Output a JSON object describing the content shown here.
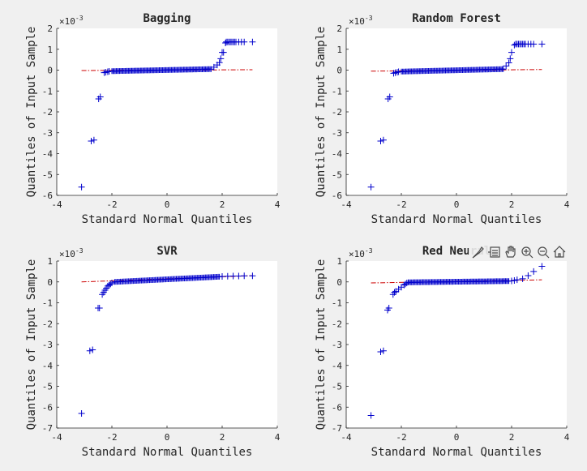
{
  "toolbar": {
    "icons": [
      "brush-icon",
      "data-cursor-icon",
      "pan-hand-icon",
      "zoom-in-icon",
      "zoom-out-icon",
      "home-icon"
    ]
  },
  "colors": {
    "background": "#f0f0f0",
    "axes_background": "#ffffff",
    "markers": "#0000cc",
    "reference_line": "#cc0000",
    "text": "#262626"
  },
  "chart_data": [
    {
      "type": "scatter",
      "title": "Bagging",
      "xlabel": "Standard Normal Quantiles",
      "ylabel": "Quantiles of Input Sample",
      "exponent_label": "×10",
      "exponent_power": "-3",
      "xlim": [
        -4,
        4
      ],
      "ylim": [
        -6,
        2
      ],
      "xticks": [
        "-4",
        "-2",
        "0",
        "2",
        "4"
      ],
      "yticks": [
        "2",
        "1",
        "0",
        "-1",
        "-2",
        "-3",
        "-4",
        "-5",
        "-6"
      ],
      "grid": false,
      "reference_line": {
        "x": [
          -3.1,
          3.1
        ],
        "y": [
          -0.02,
          0.02
        ],
        "style": "dash-dot",
        "color": "#cc0000"
      },
      "outlier_points": {
        "x": [
          -3.1,
          -2.75,
          -2.65,
          -2.48,
          -2.42,
          -2.28,
          -2.22,
          -2.15,
          -2.1,
          1.7,
          1.82,
          1.9,
          1.95,
          2.0,
          2.05,
          2.12,
          2.15,
          2.2,
          2.25,
          2.3,
          2.35,
          2.4,
          2.45,
          2.5,
          2.6,
          2.7,
          2.8,
          3.1
        ],
        "y": [
          -5.6,
          -3.4,
          -3.35,
          -1.38,
          -1.28,
          -0.12,
          -0.1,
          -0.08,
          -0.06,
          0.14,
          0.25,
          0.36,
          0.55,
          0.85,
          0.85,
          1.3,
          1.35,
          1.35,
          1.35,
          1.35,
          1.35,
          1.35,
          1.35,
          1.35,
          1.35,
          1.35,
          1.35,
          1.35
        ]
      },
      "body_segments": [
        {
          "x": [
            -2.0,
            1.6
          ],
          "y": [
            -0.05,
            0.05
          ]
        }
      ]
    },
    {
      "type": "scatter",
      "title": "Random Forest",
      "xlabel": "Standard Normal Quantiles",
      "ylabel": "Quantiles of Input Sample",
      "exponent_label": "×10",
      "exponent_power": "-3",
      "xlim": [
        -4,
        4
      ],
      "ylim": [
        -6,
        2
      ],
      "xticks": [
        "-4",
        "-2",
        "0",
        "2",
        "4"
      ],
      "yticks": [
        "2",
        "1",
        "0",
        "-1",
        "-2",
        "-3",
        "-4",
        "-5",
        "-6"
      ],
      "grid": false,
      "reference_line": {
        "x": [
          -3.1,
          3.1
        ],
        "y": [
          -0.05,
          0.03
        ],
        "style": "dash-dot",
        "color": "#cc0000"
      },
      "outlier_points": {
        "x": [
          -3.1,
          -2.75,
          -2.65,
          -2.48,
          -2.42,
          -2.28,
          -2.22,
          -2.15,
          -2.1,
          1.8,
          1.9,
          1.95,
          2.0,
          2.1,
          2.15,
          2.2,
          2.25,
          2.3,
          2.35,
          2.4,
          2.45,
          2.5,
          2.6,
          2.7,
          2.8,
          3.1
        ],
        "y": [
          -5.6,
          -3.4,
          -3.35,
          -1.38,
          -1.28,
          -0.15,
          -0.12,
          -0.1,
          -0.08,
          0.2,
          0.35,
          0.55,
          0.85,
          1.2,
          1.25,
          1.25,
          1.25,
          1.25,
          1.25,
          1.25,
          1.25,
          1.25,
          1.25,
          1.25,
          1.25,
          1.25
        ]
      },
      "body_segments": [
        {
          "x": [
            -2.0,
            1.7
          ],
          "y": [
            -0.07,
            0.05
          ]
        }
      ]
    },
    {
      "type": "scatter",
      "title": "SVR",
      "xlabel": "Standard Normal Quantiles",
      "ylabel": "Quantiles of Input Sample",
      "exponent_label": "×10",
      "exponent_power": "-3",
      "xlim": [
        -4,
        4
      ],
      "ylim": [
        -7,
        1
      ],
      "xticks": [
        "-4",
        "-2",
        "0",
        "2",
        "4"
      ],
      "yticks": [
        "1",
        "0",
        "-1",
        "-2",
        "-3",
        "-4",
        "-5",
        "-6",
        "-7"
      ],
      "grid": false,
      "reference_line": {
        "x": [
          -3.1,
          3.1
        ],
        "y": [
          0.0,
          0.3
        ],
        "style": "dash-dot",
        "color": "#cc0000"
      },
      "outlier_points": {
        "x": [
          -3.1,
          -2.8,
          -2.7,
          -2.5,
          -2.45,
          -2.35,
          -2.3,
          -2.25,
          -2.2,
          -2.15,
          -2.1,
          -2.05,
          -2.0,
          2.0,
          2.2,
          2.4,
          2.6,
          2.8,
          3.1
        ],
        "y": [
          -6.3,
          -3.3,
          -3.25,
          -1.25,
          -1.25,
          -0.6,
          -0.5,
          -0.4,
          -0.3,
          -0.2,
          -0.15,
          -0.1,
          -0.05,
          0.26,
          0.27,
          0.28,
          0.28,
          0.29,
          0.29
        ]
      },
      "body_segments": [
        {
          "x": [
            -1.9,
            1.9
          ],
          "y": [
            0.0,
            0.25
          ]
        }
      ]
    },
    {
      "type": "scatter",
      "title": "Red Neural",
      "xlabel": "Standard Normal Quantiles",
      "ylabel": "Quantiles of Input Sample",
      "exponent_label": "×10",
      "exponent_power": "-3",
      "xlim": [
        -4,
        4
      ],
      "ylim": [
        -7,
        1
      ],
      "xticks": [
        "-4",
        "-2",
        "0",
        "2",
        "4"
      ],
      "yticks": [
        "1",
        "0",
        "-1",
        "-2",
        "-3",
        "-4",
        "-5",
        "-6",
        "-7"
      ],
      "grid": false,
      "reference_line": {
        "x": [
          -3.1,
          3.1
        ],
        "y": [
          -0.05,
          0.1
        ],
        "style": "dash-dot",
        "color": "#cc0000"
      },
      "outlier_points": {
        "x": [
          -3.1,
          -2.75,
          -2.65,
          -2.5,
          -2.45,
          -2.3,
          -2.25,
          -2.2,
          -2.1,
          -2.0,
          -1.9,
          -1.85,
          -1.8,
          2.0,
          2.1,
          2.2,
          2.4,
          2.6,
          2.8,
          3.1
        ],
        "y": [
          -6.4,
          -3.35,
          -3.3,
          -1.35,
          -1.25,
          -0.6,
          -0.5,
          -0.45,
          -0.35,
          -0.25,
          -0.15,
          -0.1,
          -0.05,
          0.05,
          0.07,
          0.1,
          0.15,
          0.3,
          0.5,
          0.75
        ]
      },
      "body_segments": [
        {
          "x": [
            -1.75,
            1.9
          ],
          "y": [
            -0.02,
            0.04
          ]
        }
      ]
    }
  ]
}
